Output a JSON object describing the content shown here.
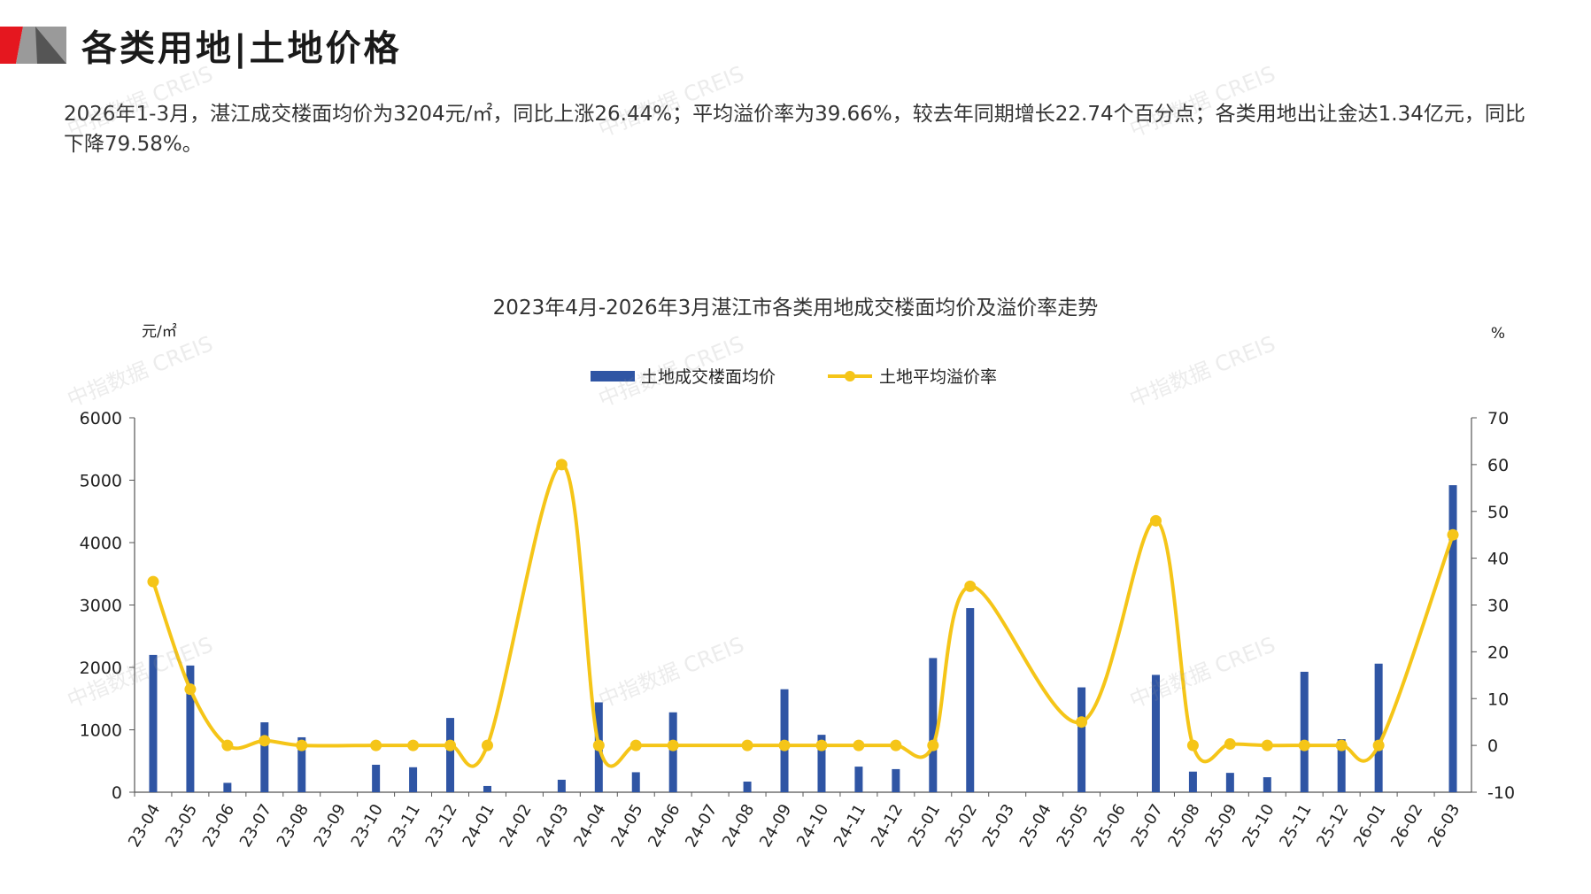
{
  "header": {
    "title": "各类用地|土地价格"
  },
  "summary": {
    "text": "2026年1-3月，湛江成交楼面均价为3204元/㎡，同比上涨26.44%；平均溢价率为39.66%，较去年同期增长22.74个百分点；各类用地出让金达1.34亿元，同比下降79.58%。"
  },
  "watermark": "中指数据 CREIS",
  "colors": {
    "bar": "#2f55a4",
    "line": "#f5c518",
    "axis": "#555555",
    "logo_red": "#e5171f",
    "logo_grey": "#9a9a9a"
  },
  "chart_data": {
    "type": "bar",
    "title": "2023年4月-2026年3月湛江市各类用地成交楼面均价及溢价率走势",
    "y_left_unit": "元/㎡",
    "y_right_unit": "%",
    "y_left_lim": [
      0,
      6000
    ],
    "y_left_ticks": [
      "0",
      "1000",
      "2000",
      "3000",
      "4000",
      "5000",
      "6000"
    ],
    "y_right_lim": [
      -10,
      70
    ],
    "y_right_ticks": [
      "-10",
      "0",
      "10",
      "20",
      "30",
      "40",
      "50",
      "60",
      "70"
    ],
    "legend_position": "top-center",
    "categories": [
      "23-04",
      "23-05",
      "23-06",
      "23-07",
      "23-08",
      "23-09",
      "23-10",
      "23-11",
      "23-12",
      "24-01",
      "24-02",
      "24-03",
      "24-04",
      "24-05",
      "24-06",
      "24-07",
      "24-08",
      "24-09",
      "24-10",
      "24-11",
      "24-12",
      "25-01",
      "25-02",
      "25-03",
      "25-04",
      "25-05",
      "25-06",
      "25-07",
      "25-08",
      "25-09",
      "25-10",
      "25-11",
      "25-12",
      "26-01",
      "26-02",
      "26-03"
    ],
    "series": [
      {
        "name": "土地成交楼面均价",
        "type": "bar",
        "axis": "left",
        "values": [
          2200,
          2030,
          150,
          1120,
          880,
          null,
          440,
          400,
          1190,
          100,
          null,
          200,
          1440,
          320,
          1280,
          null,
          170,
          1650,
          920,
          410,
          370,
          2150,
          2950,
          null,
          null,
          1680,
          null,
          1880,
          330,
          310,
          240,
          1930,
          850,
          2060,
          null,
          4920
        ]
      },
      {
        "name": "土地平均溢价率",
        "type": "line",
        "axis": "right",
        "values": [
          35,
          12,
          0,
          1,
          0,
          null,
          0,
          0,
          0,
          0,
          null,
          60,
          0,
          0,
          0,
          null,
          0,
          0,
          0,
          0,
          0,
          0,
          34,
          null,
          null,
          5,
          null,
          48,
          0,
          0.3,
          0,
          0,
          0,
          0,
          null,
          45
        ]
      }
    ]
  }
}
